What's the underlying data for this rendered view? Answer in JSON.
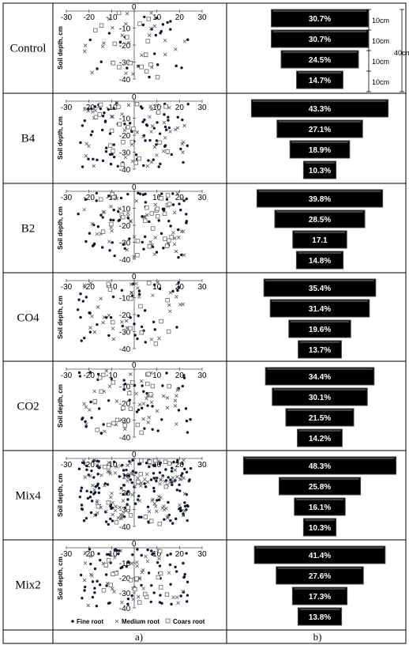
{
  "column_labels": [
    "a)",
    "b)"
  ],
  "chart_data": [
    {
      "treatment": "Control",
      "type": "scatter",
      "ylabel": "Soil depth, cm",
      "xticks": [
        "-30",
        "-20",
        "-10",
        "0",
        "10",
        "20",
        "30"
      ],
      "yticks": [
        "0",
        "-10",
        "-20",
        "-30",
        "-40"
      ],
      "xlim": [
        -30,
        30
      ],
      "ylim": [
        -40,
        0
      ],
      "density": {
        "fine": 26,
        "medium": 26,
        "coarse": 16
      },
      "distribution": {
        "type": "funnel",
        "labels": [
          "30.7%",
          "30.7%",
          "24.5%",
          "14.7%"
        ],
        "values": [
          30.7,
          30.7,
          24.5,
          14.7
        ],
        "layer_label": "10cm",
        "total_label": "40cm"
      }
    },
    {
      "treatment": "B4",
      "type": "scatter",
      "ylabel": "Soil depth, cm",
      "xticks": [
        "-30",
        "-20",
        "-10",
        "0",
        "10",
        "20",
        "30"
      ],
      "yticks": [
        "0",
        "-10",
        "-20",
        "-30",
        "-40"
      ],
      "xlim": [
        -30,
        30
      ],
      "ylim": [
        -40,
        0
      ],
      "density": {
        "fine": 80,
        "medium": 42,
        "coarse": 20
      },
      "distribution": {
        "type": "funnel",
        "labels": [
          "43.3%",
          "27.1%",
          "18.9%",
          "10.3%"
        ],
        "values": [
          43.3,
          27.1,
          18.9,
          10.3
        ]
      }
    },
    {
      "treatment": "B2",
      "type": "scatter",
      "ylabel": "Soil depth, cm",
      "xticks": [
        "-30",
        "-20",
        "-10",
        "0",
        "10",
        "20",
        "30"
      ],
      "yticks": [
        "0",
        "-10",
        "-20",
        "-30",
        "-40"
      ],
      "xlim": [
        -30,
        30
      ],
      "ylim": [
        -40,
        0
      ],
      "density": {
        "fine": 70,
        "medium": 40,
        "coarse": 26
      },
      "distribution": {
        "type": "funnel",
        "labels": [
          "39.8%",
          "28.5%",
          "17.1",
          "14.8%"
        ],
        "values": [
          39.8,
          28.5,
          17.1,
          14.8
        ]
      }
    },
    {
      "treatment": "CO4",
      "type": "scatter",
      "ylabel": "Soil depth, cm",
      "xticks": [
        "-30",
        "-20",
        "-10",
        "0",
        "10",
        "20",
        "30"
      ],
      "yticks": [
        "0",
        "-10",
        "-20",
        "-30",
        "-40"
      ],
      "xlim": [
        -30,
        30
      ],
      "ylim": [
        -40,
        0
      ],
      "density": {
        "fine": 40,
        "medium": 32,
        "coarse": 12
      },
      "distribution": {
        "type": "funnel",
        "labels": [
          "35.4%",
          "31.4%",
          "19.6%",
          "13.7%"
        ],
        "values": [
          35.4,
          31.4,
          19.6,
          13.7
        ]
      }
    },
    {
      "treatment": "CO2",
      "type": "scatter",
      "ylabel": "Soil depth, cm",
      "xticks": [
        "-30",
        "-20",
        "-10",
        "0",
        "10",
        "20",
        "30"
      ],
      "yticks": [
        "0",
        "-10",
        "-20",
        "-30",
        "-40"
      ],
      "xlim": [
        -30,
        30
      ],
      "ylim": [
        -40,
        0
      ],
      "density": {
        "fine": 48,
        "medium": 38,
        "coarse": 22
      },
      "distribution": {
        "type": "funnel",
        "labels": [
          "34.4%",
          "30.1%",
          "21.5%",
          "14.2%"
        ],
        "values": [
          34.4,
          30.1,
          21.5,
          14.2
        ]
      }
    },
    {
      "treatment": "Mix4",
      "type": "scatter",
      "ylabel": "Soil depth, cm",
      "xticks": [
        "-30",
        "-20",
        "-10",
        "0",
        "10",
        "20",
        "30"
      ],
      "yticks": [
        "0",
        "-10",
        "-20",
        "-30",
        "-40"
      ],
      "xlim": [
        -30,
        30
      ],
      "ylim": [
        -40,
        0
      ],
      "density": {
        "fine": 150,
        "medium": 90,
        "coarse": 18
      },
      "distribution": {
        "type": "funnel",
        "labels": [
          "48.3%",
          "25.8%",
          "16.1%",
          "10.3%"
        ],
        "values": [
          48.3,
          25.8,
          16.1,
          10.3
        ]
      }
    },
    {
      "treatment": "Mix2",
      "type": "scatter",
      "ylabel": "Soil depth, cm",
      "xticks": [
        "-30",
        "-20",
        "-10",
        "0",
        "10",
        "20",
        "30"
      ],
      "yticks": [
        "0",
        "-10",
        "-20",
        "-30",
        "-40"
      ],
      "xlim": [
        -30,
        30
      ],
      "ylim": [
        -40,
        0
      ],
      "density": {
        "fine": 75,
        "medium": 35,
        "coarse": 18
      },
      "distribution": {
        "type": "funnel",
        "labels": [
          "41.4%",
          "27.6%",
          "17.3%",
          "13.8%"
        ],
        "values": [
          41.4,
          27.6,
          17.3,
          13.8
        ]
      },
      "legend": [
        "Fine root",
        "Medium root",
        "Coars root"
      ]
    }
  ]
}
